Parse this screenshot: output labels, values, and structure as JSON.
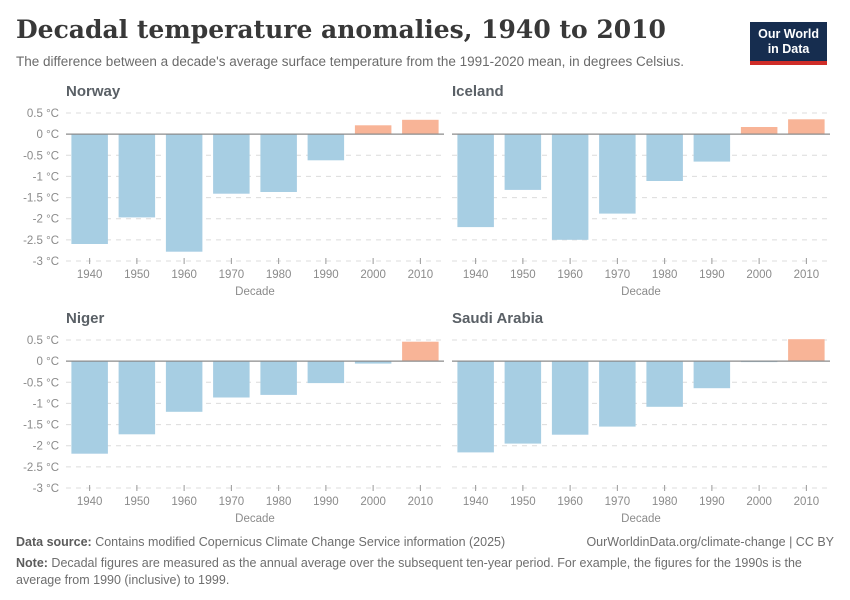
{
  "header": {
    "title": "Decadal temperature anomalies, 1940 to 2010",
    "subtitle": "The difference between a decade's average surface temperature from the 1991-2020 mean, in degrees Celsius.",
    "logo": {
      "line1": "Our World",
      "line2": "in Data",
      "bg_color": "#162d4f",
      "accent_color": "#cf2d28"
    }
  },
  "chart_data": {
    "type": "bar",
    "layout": "small-multiples 2x2",
    "categories": [
      "1940",
      "1950",
      "1960",
      "1970",
      "1980",
      "1990",
      "2000",
      "2010"
    ],
    "xlabel": "Decade",
    "ylabel": "",
    "ylim": [
      -3,
      0.5
    ],
    "ytick_values": [
      0.5,
      0,
      -0.5,
      -1,
      -1.5,
      -2,
      -2.5,
      -3
    ],
    "ytick_labels": [
      "0.5 °C",
      "0 °C",
      "-0.5 °C",
      "-1 °C",
      "-1.5 °C",
      "-2 °C",
      "-2.5 °C",
      "-3 °C"
    ],
    "grid": "dashed horizontal gridlines, solid zero line",
    "series": [
      {
        "name": "Norway",
        "values": [
          -2.6,
          -1.97,
          -2.78,
          -1.41,
          -1.37,
          -0.62,
          0.21,
          0.34
        ]
      },
      {
        "name": "Iceland",
        "values": [
          -2.2,
          -1.32,
          -2.5,
          -1.88,
          -1.11,
          -0.65,
          0.17,
          0.35
        ]
      },
      {
        "name": "Niger",
        "values": [
          -2.19,
          -1.73,
          -1.2,
          -0.86,
          -0.8,
          -0.52,
          -0.06,
          0.46
        ]
      },
      {
        "name": "Saudi Arabia",
        "values": [
          -2.16,
          -1.95,
          -1.74,
          -1.55,
          -1.08,
          -0.64,
          -0.02,
          0.52
        ]
      }
    ],
    "colors": {
      "negative_bar": "#a7cee3",
      "positive_bar": "#f8b497",
      "gridline": "#dcdcdc",
      "zero_line": "#8c8c8c",
      "tick": "#9a9a9a",
      "axis_text": "#8b8b8b"
    }
  },
  "footer": {
    "data_source_label": "Data source:",
    "data_source_text": " Contains modified Copernicus Climate Change Service information (2025)",
    "link_text": "OurWorldinData.org/climate-change | CC BY",
    "note_label": "Note:",
    "note_text": " Decadal figures are measured as the annual average over the subsequent ten-year period. For example, the figures for the 1990s is the average from 1990 (inclusive) to 1999."
  }
}
